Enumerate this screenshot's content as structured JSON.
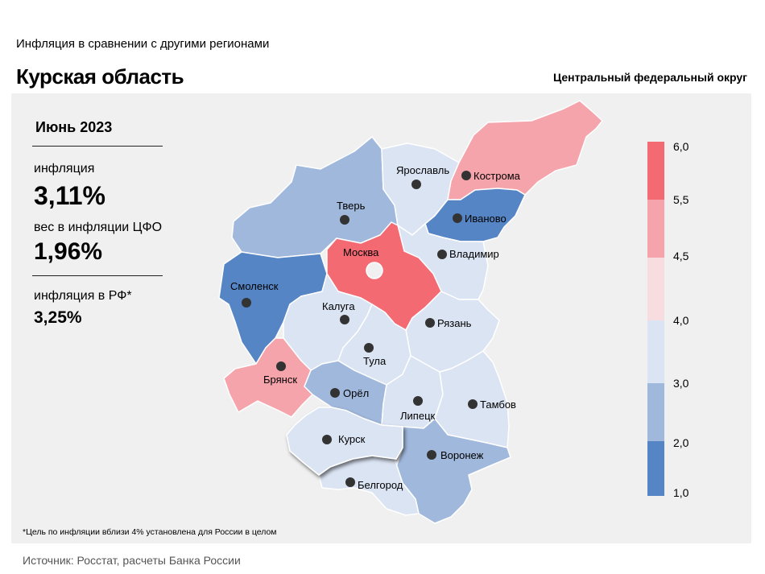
{
  "header": {
    "subtitle": "Инфляция  в сравнении  с другими  регионами",
    "title": "Курская область",
    "district": "Центральный федеральный округ"
  },
  "stats": {
    "period": "Июнь 2023",
    "inflation_label": "инфляция",
    "inflation_value": "3,11%",
    "weight_label": "вес в инфляции  ЦФО",
    "weight_value": "1,96%",
    "rf_label": "инфляция  в РФ*",
    "rf_value": "3,25%"
  },
  "footnote": "*Цель по инфляции вблизи 4% установлена для России в целом",
  "source": "Источник: Росстат, расчеты Банка России",
  "colors": {
    "c1": "#5585c4",
    "c2": "#a0b8dc",
    "c3": "#dbe4f3",
    "c4": "#f8dde0",
    "c5": "#f6a4ab",
    "c6": "#f36a73",
    "panel": "#f0f0f0"
  },
  "legend": {
    "ticks": [
      "6,0",
      "5,5",
      "4,5",
      "4,0",
      "3,0",
      "2,0",
      "1,0"
    ]
  },
  "regions": [
    {
      "name": "Ярославль",
      "class": "c3"
    },
    {
      "name": "Кострома",
      "class": "c5"
    },
    {
      "name": "Тверь",
      "class": "c2"
    },
    {
      "name": "Иваново",
      "class": "c1"
    },
    {
      "name": "Москва",
      "class": "c6"
    },
    {
      "name": "Владимир",
      "class": "c3"
    },
    {
      "name": "Смоленск",
      "class": "c1"
    },
    {
      "name": "Калуга",
      "class": "c3"
    },
    {
      "name": "Рязань",
      "class": "c3"
    },
    {
      "name": "Тула",
      "class": "c3"
    },
    {
      "name": "Брянск",
      "class": "c5"
    },
    {
      "name": "Орёл",
      "class": "c2"
    },
    {
      "name": "Липецк",
      "class": "c3"
    },
    {
      "name": "Тамбов",
      "class": "c3"
    },
    {
      "name": "Курск",
      "class": "c3"
    },
    {
      "name": "Воронеж",
      "class": "c2"
    },
    {
      "name": "Белгород",
      "class": "c3"
    }
  ]
}
